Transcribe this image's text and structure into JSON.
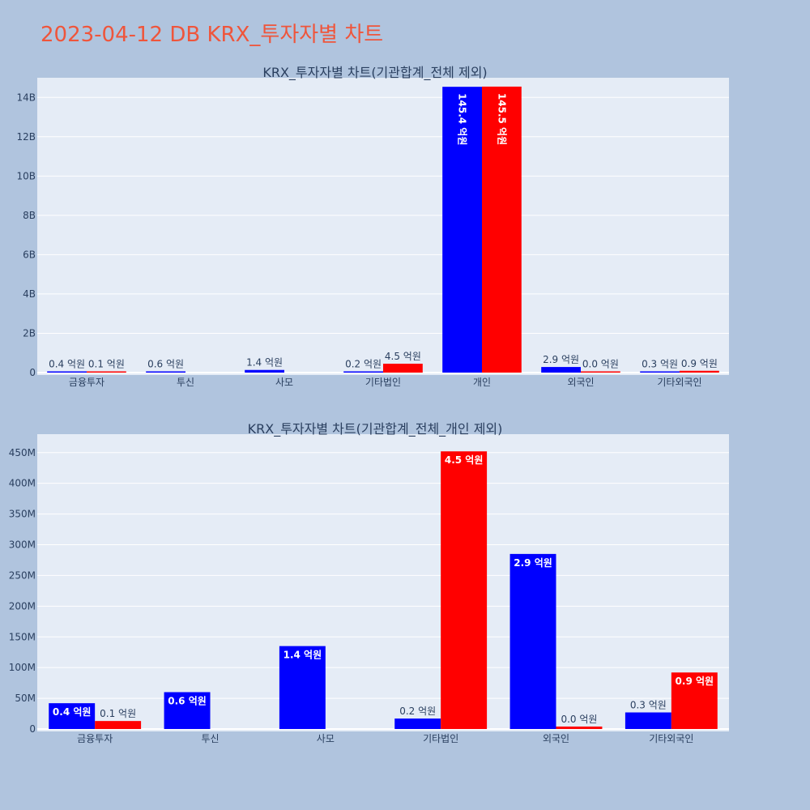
{
  "page_title": "2023-04-12 DB KRX_투자자별 차트",
  "colors": {
    "buy": "#0000ff",
    "sell": "#ff0000",
    "plot_bg": "#e5ecf6",
    "page_bg": "#b0c4de",
    "title": "#ef553b"
  },
  "chart_data": [
    {
      "type": "bar",
      "title": "KRX_투자자별 차트(기관합계_전체 제외)",
      "categories": [
        "금융투자",
        "투신",
        "사모",
        "기타법인",
        "개인",
        "외국인",
        "기타외국인"
      ],
      "series": [
        {
          "values": [
            40000000,
            60000000,
            135000000,
            17000000,
            14540000000,
            285000000,
            27000000
          ],
          "labels": [
            "0.4 억원",
            "0.6 억원",
            "1.4 억원",
            "0.2 억원",
            "145.4 억원",
            "2.9 억원",
            "0.3 억원"
          ]
        },
        {
          "values": [
            13000000,
            null,
            null,
            452000000,
            14550000000,
            4000000,
            92000000
          ],
          "labels": [
            "0.1 억원",
            "",
            "",
            "4.5 억원",
            "145.5 억원",
            "0.0 억원",
            "0.9 억원"
          ]
        }
      ],
      "ylim": [
        0,
        15000000000
      ],
      "yticks": [
        0,
        2000000000,
        4000000000,
        6000000000,
        8000000000,
        10000000000,
        12000000000,
        14000000000
      ],
      "ytick_labels": [
        "0",
        "2B",
        "4B",
        "6B",
        "8B",
        "10B",
        "12B",
        "14B"
      ],
      "grid": true,
      "legend": "none"
    },
    {
      "type": "bar",
      "title": "KRX_투자자별 차트(기관합계_전체_개인 제외)",
      "categories": [
        "금융투자",
        "투신",
        "사모",
        "기타법인",
        "외국인",
        "기타외국인"
      ],
      "series": [
        {
          "values": [
            42000000,
            60000000,
            135000000,
            17000000,
            285000000,
            27000000
          ],
          "labels": [
            "0.4 억원",
            "0.6 억원",
            "1.4 억원",
            "0.2 억원",
            "2.9 억원",
            "0.3 억원"
          ]
        },
        {
          "values": [
            13000000,
            null,
            null,
            452000000,
            4000000,
            92000000
          ],
          "labels": [
            "0.1 억원",
            "",
            "",
            "4.5 억원",
            "0.0 억원",
            "0.9 억원"
          ]
        }
      ],
      "ylim": [
        0,
        480000000
      ],
      "yticks": [
        0,
        50000000,
        100000000,
        150000000,
        200000000,
        250000000,
        300000000,
        350000000,
        400000000,
        450000000
      ],
      "ytick_labels": [
        "0",
        "50M",
        "100M",
        "150M",
        "200M",
        "250M",
        "300M",
        "350M",
        "400M",
        "450M"
      ],
      "grid": true,
      "legend": "none"
    }
  ]
}
